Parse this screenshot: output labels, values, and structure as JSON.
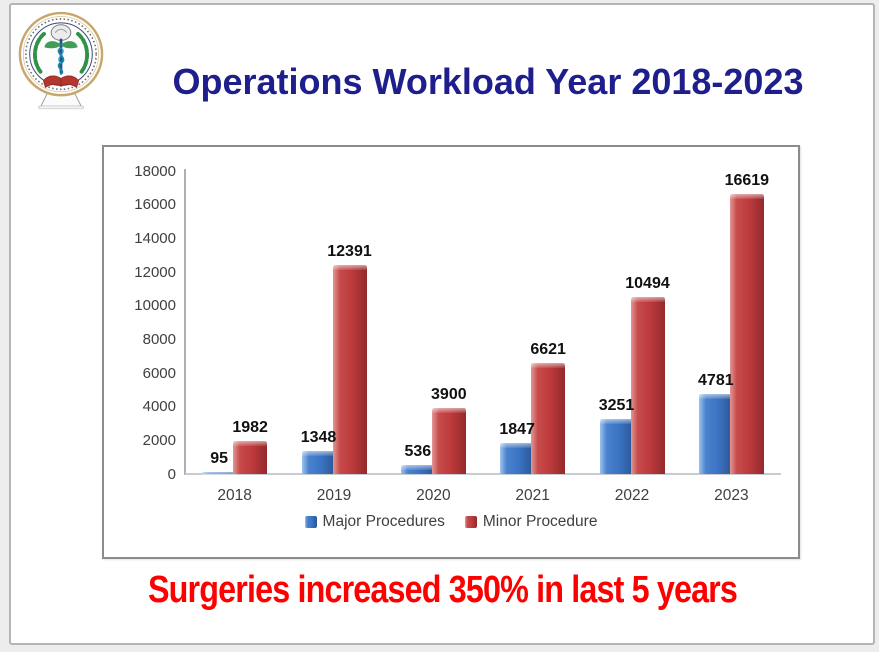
{
  "title": {
    "text": "Operations Workload Year 2018-2023",
    "color": "#1E1E8C"
  },
  "footer": {
    "text": "Surgeries increased 350% in last 5 years",
    "color": "#FF0000"
  },
  "icons": {
    "logo": "medical-institute-emblem"
  },
  "chart_data": {
    "type": "bar",
    "title": "",
    "xlabel": "",
    "ylabel": "",
    "categories": [
      "2018",
      "2019",
      "2020",
      "2021",
      "2022",
      "2023"
    ],
    "series": [
      {
        "name": "Major Procedures",
        "color": "#3B74C4",
        "values": [
          95,
          1348,
          536,
          1847,
          3251,
          4781
        ]
      },
      {
        "name": "Minor Procedure",
        "color": "#BE3B3D",
        "values": [
          1982,
          12391,
          3900,
          6621,
          10494,
          16619
        ]
      }
    ],
    "ylim": [
      0,
      18000
    ],
    "yticks": [
      0,
      2000,
      4000,
      6000,
      8000,
      10000,
      12000,
      14000,
      16000,
      18000
    ],
    "grid": false,
    "legend_position": "bottom",
    "data_labels": true,
    "bar_style": "3d-bevel"
  }
}
